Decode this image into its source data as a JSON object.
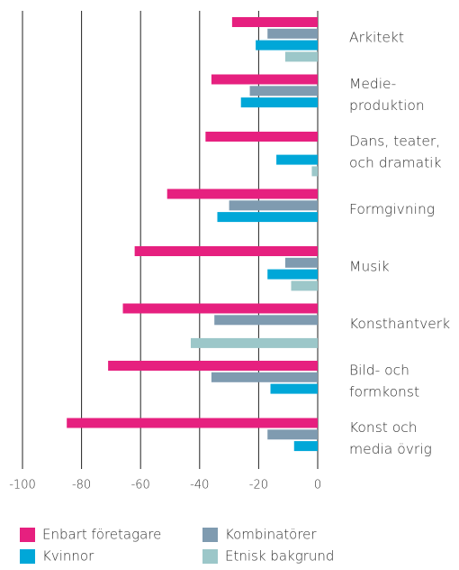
{
  "chart_data": {
    "type": "hbar",
    "categories": [
      [
        "Arkitekt"
      ],
      [
        "Medie-",
        "produktion"
      ],
      [
        "Dans, teater,",
        "och dramatik"
      ],
      [
        "Formgivning"
      ],
      [
        "Musik"
      ],
      [
        "Konsthantverk"
      ],
      [
        "Bild- och",
        "formkonst"
      ],
      [
        "Konst och",
        "media övrig"
      ]
    ],
    "series": [
      {
        "name": "Enbart företagare",
        "color": "#e6207f",
        "values": [
          -29,
          -36,
          -38,
          -51,
          -62,
          -66,
          -71,
          -85
        ]
      },
      {
        "name": "Kombinatörer",
        "color": "#7f9bb0",
        "values": [
          -17,
          -23,
          null,
          -30,
          -11,
          -35,
          -36,
          -17
        ]
      },
      {
        "name": "Kvinnor",
        "color": "#00a7d8",
        "values": [
          -21,
          -26,
          -14,
          -34,
          -17,
          null,
          -16,
          -8
        ]
      },
      {
        "name": "Etnisk bakgrund",
        "color": "#9cc7c9",
        "values": [
          -11,
          null,
          -2,
          null,
          -9,
          -43,
          null,
          null
        ]
      }
    ],
    "xlim": [
      -100,
      0
    ],
    "xticks": [
      -100,
      -80,
      -60,
      -40,
      -20,
      0
    ],
    "grid": true
  }
}
